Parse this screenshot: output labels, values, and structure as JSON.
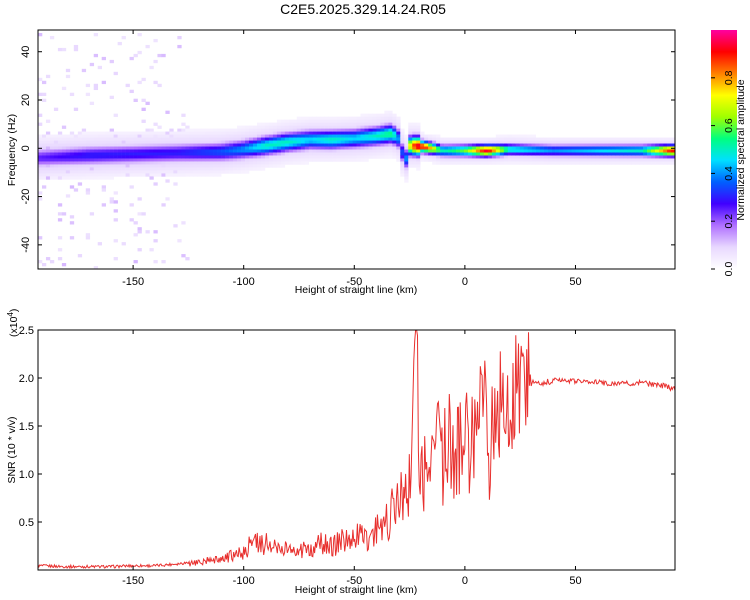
{
  "title": "C2E5.2025.329.14.24.R05",
  "colors": {
    "snr_line": "#e8302e",
    "colormap": [
      "#ffffff",
      "#e8d8ff",
      "#b070ff",
      "#4000ff",
      "#0060ff",
      "#00e0ff",
      "#00ff80",
      "#a0ff00",
      "#ffff00",
      "#ff8000",
      "#ff0000",
      "#ff00a0"
    ]
  },
  "chart_data": [
    {
      "type": "heatmap",
      "panel": "spectrogram",
      "xlabel": "Height of straight line (km)",
      "ylabel": "Frequency (Hz)",
      "xlim": [
        -193,
        95
      ],
      "ylim": [
        -50,
        49
      ],
      "x_ticks": [
        -150,
        -100,
        -50,
        0,
        50
      ],
      "x_tick_labels": [
        "-150",
        "-100",
        "-50",
        "0",
        "50"
      ],
      "y_ticks": [
        -40,
        -20,
        0,
        20,
        40
      ],
      "y_tick_labels": [
        "-40",
        "-20",
        "0",
        "20",
        "40"
      ],
      "ridge": {
        "x": [
          -193,
          -170,
          -150,
          -130,
          -110,
          -100,
          -90,
          -80,
          -70,
          -60,
          -50,
          -40,
          -33,
          -30,
          -27,
          -25,
          -22,
          -18,
          -10,
          0,
          10,
          20,
          40,
          60,
          80,
          93
        ],
        "freq": [
          -4,
          -3,
          -2.5,
          -2,
          -1.5,
          -0.5,
          1,
          2.5,
          3.5,
          3.5,
          4,
          5,
          6,
          4,
          -6,
          1,
          1,
          0.5,
          -1,
          -1,
          -1,
          -0.5,
          -1,
          -1,
          -1,
          -1
        ],
        "amplitude": [
          0.25,
          0.3,
          0.3,
          0.3,
          0.35,
          0.4,
          0.5,
          0.5,
          0.45,
          0.5,
          0.45,
          0.5,
          0.55,
          0.4,
          0.3,
          0.7,
          0.95,
          0.9,
          0.5,
          0.6,
          0.95,
          0.5,
          0.4,
          0.45,
          0.5,
          0.9
        ]
      },
      "colorbar": {
        "label": "Normalized spectral amplitude",
        "range": [
          0,
          1
        ],
        "ticks": [
          0.0,
          0.2,
          0.4,
          0.6,
          0.8
        ],
        "tick_labels": [
          "0.0",
          "0.2",
          "0.4",
          "0.6",
          "0.8"
        ]
      }
    },
    {
      "type": "line",
      "panel": "snr",
      "xlabel": "Height of straight line (km)",
      "ylabel": "SNR (10 * v/v)",
      "y_multiplier_label": "(x10",
      "y_multiplier_exp": "4",
      "y_multiplier_close": ")",
      "xlim": [
        -193,
        95
      ],
      "ylim": [
        0,
        2.5
      ],
      "x_ticks": [
        -150,
        -100,
        -50,
        0,
        50
      ],
      "x_tick_labels": [
        "-150",
        "-100",
        "-50",
        "0",
        "50"
      ],
      "y_ticks": [
        0.5,
        1.0,
        1.5,
        2.0,
        2.5
      ],
      "y_tick_labels": [
        "0.5",
        "1.0",
        "1.5",
        "2.0",
        "2.5"
      ],
      "series": [
        {
          "name": "SNR",
          "x": [
            -193,
            -180,
            -170,
            -160,
            -150,
            -140,
            -130,
            -120,
            -110,
            -105,
            -100,
            -95,
            -90,
            -85,
            -80,
            -75,
            -70,
            -65,
            -60,
            -55,
            -50,
            -45,
            -40,
            -36,
            -33,
            -30,
            -27,
            -25,
            -22,
            -20,
            -18,
            -16,
            -14,
            -12,
            -10,
            -8,
            -6,
            -4,
            -2,
            0,
            2,
            4,
            6,
            8,
            10,
            11,
            12,
            14,
            16,
            18,
            20,
            22,
            25,
            30,
            35,
            40,
            50,
            60,
            70,
            80,
            90,
            95
          ],
          "values": [
            0.03,
            0.02,
            0.02,
            0.02,
            0.03,
            0.03,
            0.05,
            0.08,
            0.12,
            0.15,
            0.2,
            0.3,
            0.28,
            0.25,
            0.22,
            0.2,
            0.22,
            0.3,
            0.25,
            0.3,
            0.35,
            0.35,
            0.4,
            0.5,
            0.6,
            0.7,
            0.8,
            1.0,
            2.5,
            0.9,
            1.1,
            1.0,
            1.2,
            1.3,
            1.15,
            1.3,
            1.35,
            1.3,
            1.4,
            1.45,
            1.35,
            1.4,
            1.5,
            1.55,
            1.9,
            0.55,
            1.6,
            1.6,
            1.7,
            1.75,
            1.75,
            1.85,
            1.9,
            1.95,
            1.95,
            1.97,
            1.97,
            1.95,
            1.95,
            1.95,
            1.92,
            1.88
          ]
        }
      ]
    }
  ]
}
